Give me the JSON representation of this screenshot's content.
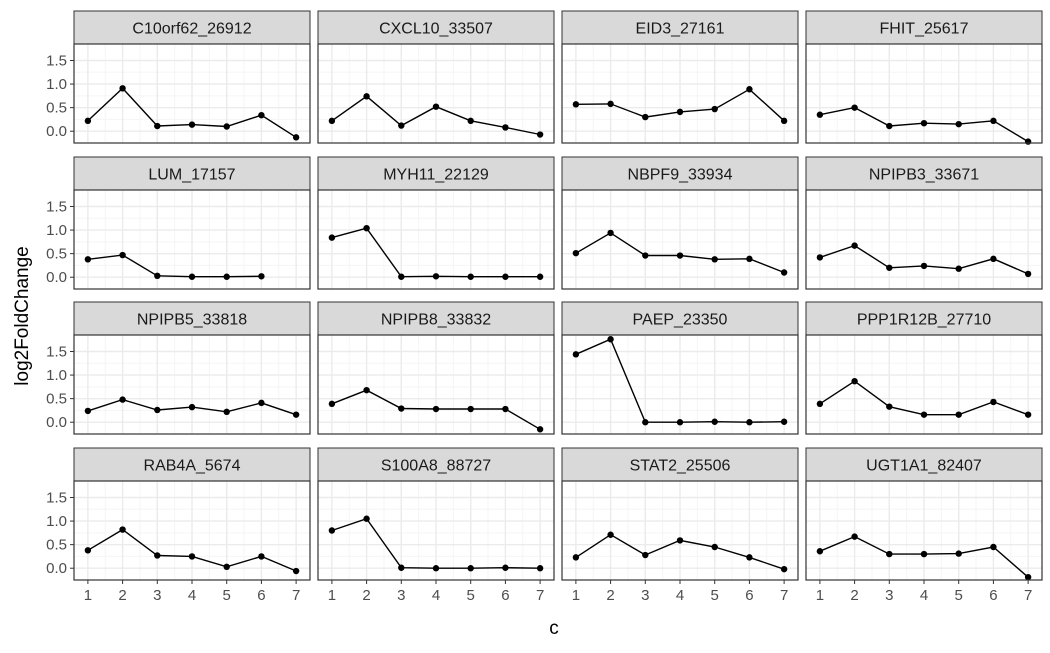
{
  "chart_data": {
    "type": "line",
    "facet_layout": "4x4 grid",
    "xlabel": "c",
    "ylabel": "log2FoldChange",
    "x_ticks": [
      1,
      2,
      3,
      4,
      5,
      6,
      7
    ],
    "y_ticks": [
      0.0,
      0.5,
      1.0,
      1.5
    ],
    "y_tick_labels": [
      "0.0",
      "0.5",
      "1.0",
      "1.5"
    ],
    "ylim": [
      -0.25,
      1.85
    ],
    "xlim": [
      0.6,
      7.4
    ],
    "grid": true,
    "theme_colors": {
      "strip_fill": "#d9d9d9",
      "panel_border": "#333333",
      "grid_major": "#ebebeb",
      "grid_minor": "#f5f5f5",
      "line": "#000000",
      "tick_text": "#4d4d4d",
      "axis_title": "#000000"
    },
    "panels": [
      {
        "title": "C10orf62_26912",
        "x": [
          1,
          2,
          3,
          4,
          5,
          6,
          7
        ],
        "y": [
          0.22,
          0.91,
          0.11,
          0.14,
          0.1,
          0.34,
          -0.13
        ]
      },
      {
        "title": "CXCL10_33507",
        "x": [
          1,
          2,
          3,
          4,
          5,
          6,
          7
        ],
        "y": [
          0.22,
          0.74,
          0.12,
          0.52,
          0.22,
          0.08,
          -0.07
        ]
      },
      {
        "title": "EID3_27161",
        "x": [
          1,
          2,
          3,
          4,
          5,
          6,
          7
        ],
        "y": [
          0.57,
          0.58,
          0.3,
          0.41,
          0.47,
          0.89,
          0.22
        ]
      },
      {
        "title": "FHIT_25617",
        "x": [
          1,
          2,
          3,
          4,
          5,
          6,
          7
        ],
        "y": [
          0.35,
          0.5,
          0.11,
          0.17,
          0.15,
          0.22,
          -0.22
        ]
      },
      {
        "title": "LUM_17157",
        "x": [
          1,
          2,
          3,
          4,
          5,
          6
        ],
        "y": [
          0.38,
          0.47,
          0.03,
          0.01,
          0.01,
          0.02
        ]
      },
      {
        "title": "MYH11_22129",
        "x": [
          1,
          2,
          3,
          4,
          5,
          6,
          7
        ],
        "y": [
          0.84,
          1.04,
          0.01,
          0.02,
          0.01,
          0.01,
          0.01
        ]
      },
      {
        "title": "NBPF9_33934",
        "x": [
          1,
          2,
          3,
          4,
          5,
          6,
          7
        ],
        "y": [
          0.51,
          0.94,
          0.46,
          0.46,
          0.38,
          0.39,
          0.1
        ]
      },
      {
        "title": "NPIPB3_33671",
        "x": [
          1,
          2,
          3,
          4,
          5,
          6,
          7
        ],
        "y": [
          0.42,
          0.67,
          0.2,
          0.24,
          0.18,
          0.39,
          0.07
        ]
      },
      {
        "title": "NPIPB5_33818",
        "x": [
          1,
          2,
          3,
          4,
          5,
          6,
          7
        ],
        "y": [
          0.24,
          0.48,
          0.26,
          0.32,
          0.22,
          0.41,
          0.16
        ]
      },
      {
        "title": "NPIPB8_33832",
        "x": [
          1,
          2,
          3,
          4,
          5,
          6,
          7
        ],
        "y": [
          0.39,
          0.68,
          0.29,
          0.28,
          0.28,
          0.28,
          -0.15
        ]
      },
      {
        "title": "PAEP_23350",
        "x": [
          1,
          2,
          3,
          4,
          5,
          6,
          7
        ],
        "y": [
          1.44,
          1.76,
          0.0,
          0.0,
          0.01,
          0.0,
          0.01
        ]
      },
      {
        "title": "PPP1R12B_27710",
        "x": [
          1,
          2,
          3,
          4,
          5,
          6,
          7
        ],
        "y": [
          0.39,
          0.87,
          0.33,
          0.16,
          0.16,
          0.43,
          0.16
        ]
      },
      {
        "title": "RAB4A_5674",
        "x": [
          1,
          2,
          3,
          4,
          5,
          6,
          7
        ],
        "y": [
          0.38,
          0.82,
          0.27,
          0.25,
          0.03,
          0.25,
          -0.06
        ]
      },
      {
        "title": "S100A8_88727",
        "x": [
          1,
          2,
          3,
          4,
          5,
          6,
          7
        ],
        "y": [
          0.8,
          1.05,
          0.01,
          0.0,
          0.0,
          0.01,
          0.0
        ]
      },
      {
        "title": "STAT2_25506",
        "x": [
          1,
          2,
          3,
          4,
          5,
          6,
          7
        ],
        "y": [
          0.23,
          0.71,
          0.28,
          0.59,
          0.45,
          0.23,
          -0.02
        ]
      },
      {
        "title": "UGT1A1_82407",
        "x": [
          1,
          2,
          3,
          4,
          5,
          6,
          7
        ],
        "y": [
          0.36,
          0.67,
          0.3,
          0.3,
          0.31,
          0.45,
          -0.19
        ]
      }
    ]
  }
}
